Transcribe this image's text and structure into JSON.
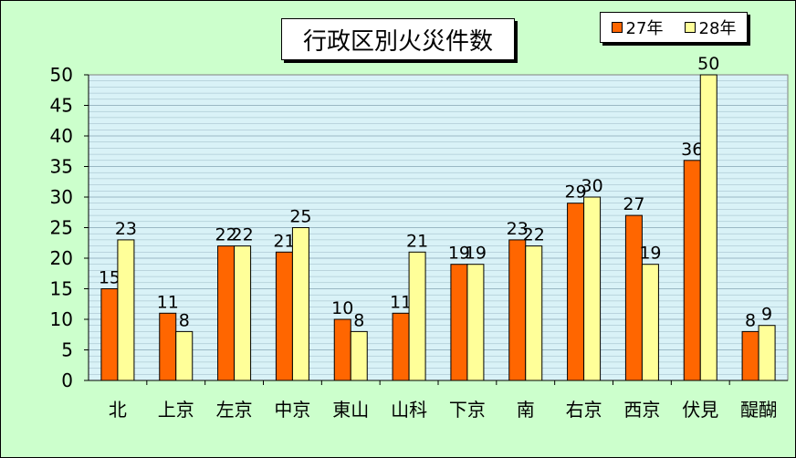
{
  "chart_data": {
    "type": "bar",
    "title": "行政区別火災件数",
    "categories": [
      "北",
      "上京",
      "左京",
      "中京",
      "東山",
      "山科",
      "下京",
      "南",
      "右京",
      "西京",
      "伏見",
      "醍醐"
    ],
    "series": [
      {
        "name": "27年",
        "color": "#ff6600",
        "values": [
          15,
          11,
          22,
          21,
          10,
          11,
          19,
          23,
          29,
          27,
          36,
          8
        ]
      },
      {
        "name": "28年",
        "color": "#ffff99",
        "values": [
          23,
          8,
          22,
          25,
          8,
          21,
          19,
          22,
          30,
          19,
          50,
          9
        ]
      }
    ],
    "ylim": [
      0,
      50
    ],
    "yticks": [
      0,
      5,
      10,
      15,
      20,
      25,
      30,
      35,
      40,
      45,
      50
    ],
    "grid": true,
    "legend_position": "top-right",
    "colors": {
      "plot_background": "#d9f2f7",
      "figure_background": "#ccffcc",
      "grid": "#9ab8c4"
    }
  }
}
